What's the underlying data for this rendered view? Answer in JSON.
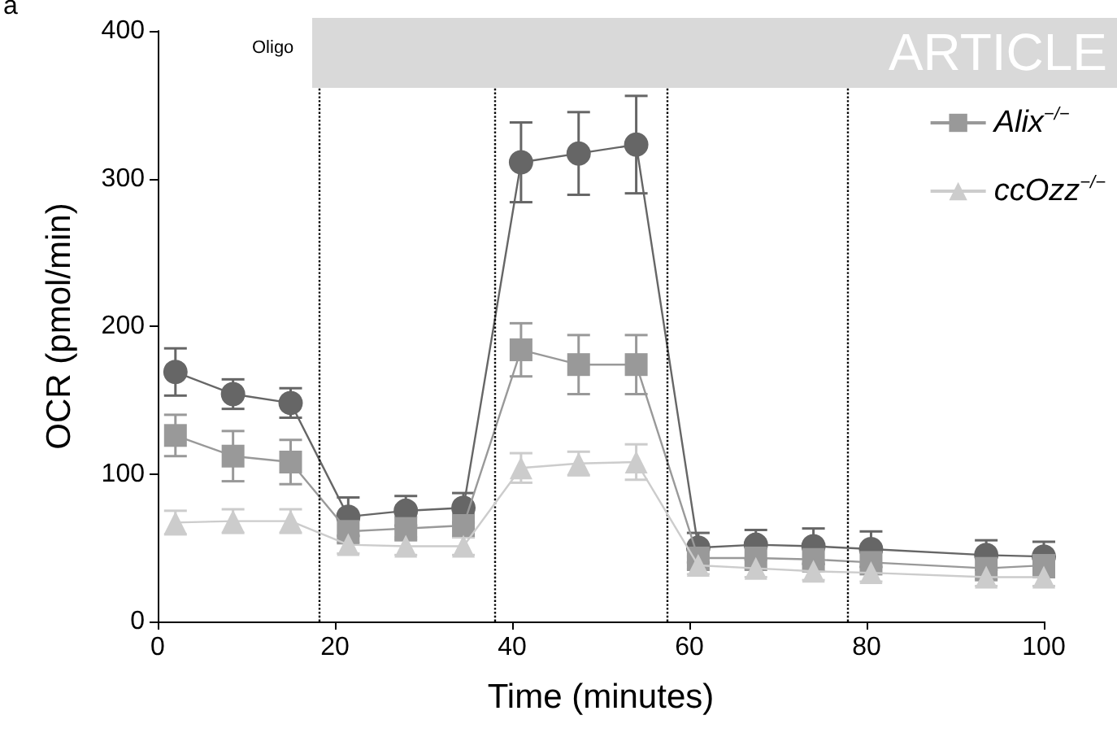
{
  "chart_data": {
    "type": "line",
    "xlabel": "Time (minutes)",
    "ylabel": "OCR (pmol/min)",
    "annotations": [
      "a",
      "Oligo",
      "ARTICLE"
    ],
    "x": [
      2,
      8.5,
      15,
      21.5,
      28,
      34.5,
      41,
      47.5,
      54,
      61,
      67.5,
      74,
      80.5,
      93.5,
      100
    ],
    "series": [
      {
        "color": "#666666",
        "marker": "circle",
        "values": [
          169,
          154,
          148,
          71,
          75,
          77,
          311,
          317,
          323,
          50,
          52,
          51,
          49,
          45,
          44
        ],
        "errors": [
          16,
          10,
          10,
          13,
          10,
          10,
          27,
          28,
          33,
          10,
          10,
          12,
          12,
          10,
          10
        ]
      },
      {
        "name": "Alix$^{−/−}$",
        "color": "#999999",
        "marker": "square",
        "values": [
          126,
          112,
          108,
          61,
          63,
          65,
          184,
          174,
          174,
          43,
          43,
          42,
          40,
          36,
          38
        ],
        "errors": [
          14,
          17,
          15,
          8,
          8,
          8,
          18,
          20,
          20,
          8,
          8,
          8,
          8,
          8,
          8
        ]
      },
      {
        "name": "ccOzz$^{−/−}$",
        "color": "#cccccc",
        "marker": "triangle",
        "values": [
          67,
          68,
          68,
          52,
          51,
          51,
          104,
          107,
          108,
          38,
          36,
          34,
          33,
          30,
          30
        ],
        "errors": [
          8,
          8,
          8,
          6,
          6,
          6,
          10,
          8,
          12,
          6,
          6,
          6,
          6,
          6,
          6
        ]
      }
    ],
    "xlim": [
      0,
      100
    ],
    "xticks": [
      0,
      20,
      40,
      60,
      80,
      100
    ],
    "ylim": [
      0,
      400
    ],
    "yticks": [
      0,
      100,
      200,
      300,
      400
    ],
    "ref_lines": [
      {
        "axis": "x",
        "value": 18.2,
        "line_style": "dotted",
        "color": "#000000"
      },
      {
        "axis": "x",
        "value": 38,
        "line_style": "dotted",
        "color": "#000000"
      },
      {
        "axis": "x",
        "value": 57.4,
        "line_style": "dotted",
        "color": "#000000"
      },
      {
        "axis": "x",
        "value": 77.8,
        "line_style": "dotted",
        "color": "#000000"
      }
    ],
    "grid": false,
    "legend": "top right"
  }
}
